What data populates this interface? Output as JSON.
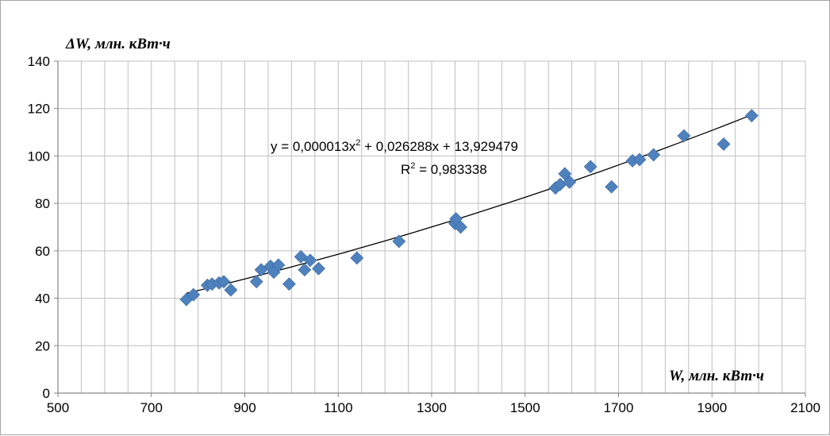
{
  "chart_data": {
    "type": "scatter",
    "title": "",
    "xlabel": "W, млн. кВт·ч",
    "ylabel": "ΔW, млн. кВт·ч",
    "xlim": [
      500,
      2100
    ],
    "ylim": [
      0,
      140
    ],
    "x_ticks": [
      "500",
      "700",
      "900",
      "1100",
      "1300",
      "1500",
      "1700",
      "1900",
      "2100"
    ],
    "y_ticks": [
      "0",
      "20",
      "40",
      "60",
      "80",
      "100",
      "120",
      "140"
    ],
    "grid": true,
    "legend": "none",
    "marker": "diamond",
    "marker_color": "#4f81bd",
    "points": [
      [
        775,
        39.5
      ],
      [
        790,
        41.5
      ],
      [
        820,
        45.5
      ],
      [
        830,
        46
      ],
      [
        845,
        46.5
      ],
      [
        855,
        47
      ],
      [
        870,
        43.5
      ],
      [
        925,
        47
      ],
      [
        935,
        52
      ],
      [
        955,
        53.5
      ],
      [
        962,
        51
      ],
      [
        972,
        54
      ],
      [
        995,
        46
      ],
      [
        1020,
        57.5
      ],
      [
        1028,
        52
      ],
      [
        1040,
        56
      ],
      [
        1058,
        52.5
      ],
      [
        1140,
        57
      ],
      [
        1230,
        64
      ],
      [
        1350,
        71.5
      ],
      [
        1352,
        73.5
      ],
      [
        1362,
        70
      ],
      [
        1565,
        86.5
      ],
      [
        1575,
        88
      ],
      [
        1585,
        92.5
      ],
      [
        1595,
        89
      ],
      [
        1640,
        95.5
      ],
      [
        1685,
        87
      ],
      [
        1730,
        98
      ],
      [
        1745,
        98.5
      ],
      [
        1775,
        100.5
      ],
      [
        1840,
        108.5
      ],
      [
        1925,
        105
      ],
      [
        1985,
        117
      ]
    ],
    "trendline": {
      "type": "polynomial",
      "order": 2,
      "a": 1.3e-05,
      "b": 0.026288,
      "c": 13.929479,
      "x_range": [
        775,
        1985
      ],
      "color": "#000000"
    },
    "annotations": {
      "equation_prefix": "y = 0,000013x",
      "equation_mid": " + 0,026288x + 13,929479",
      "superscript": "2",
      "r2_prefix": "R",
      "r2_suffix": " = 0,983338"
    }
  }
}
